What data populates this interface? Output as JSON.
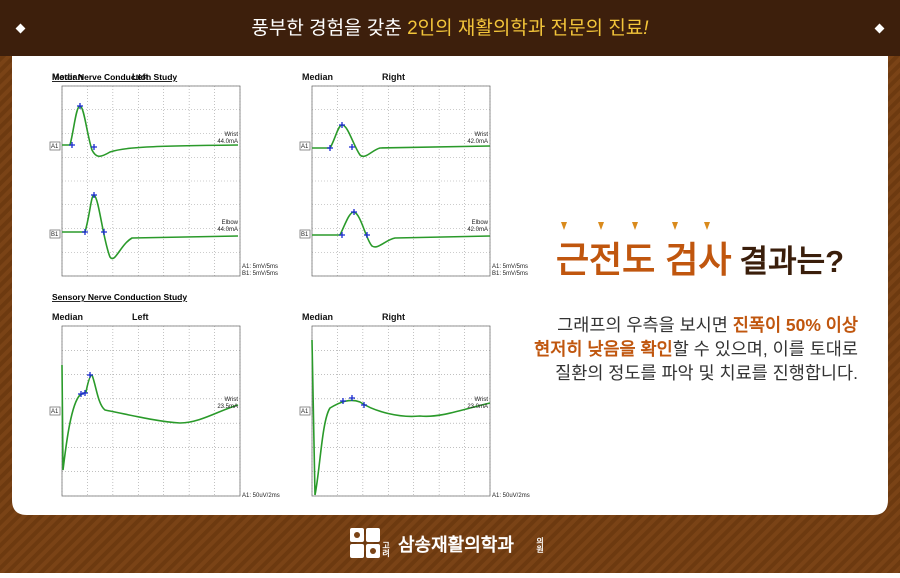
{
  "header": {
    "lead": "풍부한 경험을 갖춘 ",
    "highlight": "2인의 재활의학과 전문의 진료",
    "mark": "!"
  },
  "motor": {
    "title": "Motor Nerve Conduction Study",
    "left": {
      "nerve": "Median",
      "side": "Left",
      "a1_site": "Wrist",
      "a1_current": "44.0mA",
      "b1_site": "Elbow",
      "b1_current": "44.0mA",
      "a1": "A1",
      "b1": "B1",
      "scale_a": "A1: 5mV/5ms",
      "scale_b": "B1: 5mV/5ms"
    },
    "right": {
      "nerve": "Median",
      "side": "Right",
      "a1_site": "Wrist",
      "a1_current": "42.0mA",
      "b1_site": "Elbow",
      "b1_current": "42.0mA",
      "a1": "A1",
      "b1": "B1",
      "scale_a": "A1: 5mV/5ms",
      "scale_b": "B1: 5mV/5ms"
    }
  },
  "sensory": {
    "title": "Sensory Nerve Conduction Study",
    "left": {
      "nerve": "Median",
      "side": "Left",
      "a1_site": "Wrist",
      "a1_current": "23.5mA",
      "a1": "A1",
      "scale_a": "A1: 50uV/2ms"
    },
    "right": {
      "nerve": "Median",
      "side": "Right",
      "a1_site": "Wrist",
      "a1_current": "23.0mA",
      "a1": "A1",
      "scale_a": "A1: 50uV/2ms"
    }
  },
  "result": {
    "title_accent": "근전도 검사",
    "title_rest": "결과는?",
    "lines": [
      [
        "그래프의 우측을 보시면 ",
        "진폭이 50% 이상"
      ],
      [
        "현저히 낮음을 확인",
        "할 수 있으며, 이를 토대로"
      ],
      [
        "질환의 정도를 파악 및 치료를 진행합니다."
      ]
    ]
  },
  "footer": {
    "prefix": "고려",
    "name": "삼송재활의학과",
    "suffix": "의원"
  }
}
